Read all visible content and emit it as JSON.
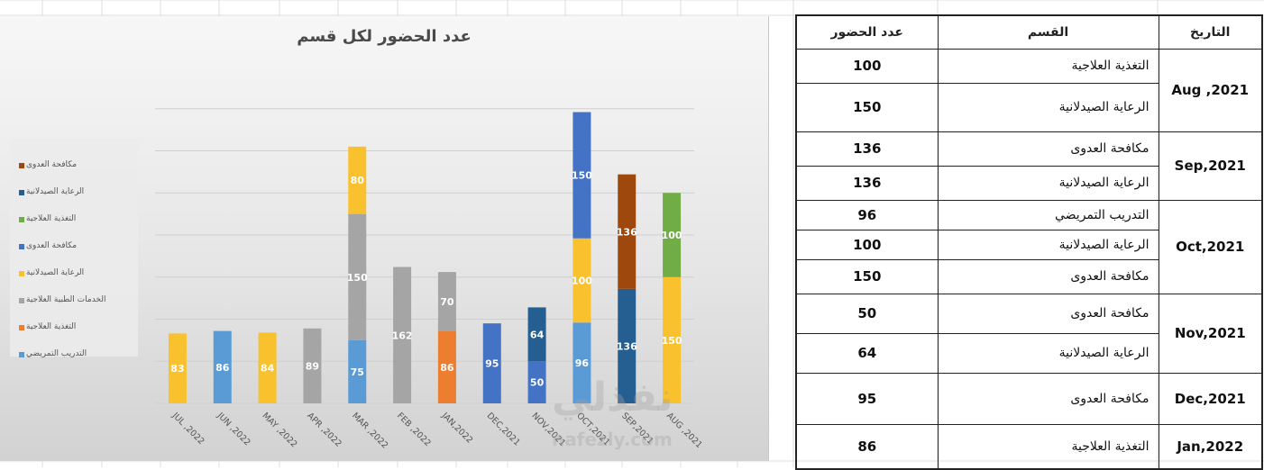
{
  "chart_data": {
    "type": "bar",
    "stacked": true,
    "title": "عدد الحضور لكل قسم",
    "categories": [
      "JUL ,2022",
      "JUN ,2022",
      "MAY ,2022",
      "APR ,2022",
      "MAR ,2022",
      "FEB ,2022",
      "JAN,2022",
      "DEC,2021",
      "NOV,2021",
      "OCT,2021",
      "SEP,2021",
      "AUG ,2021"
    ],
    "stacks": [
      [
        {
          "value": 83,
          "color": "#f9c12e"
        }
      ],
      [
        {
          "value": 86,
          "color": "#5b9bd5"
        }
      ],
      [
        {
          "value": 84,
          "color": "#f9c12e"
        }
      ],
      [
        {
          "value": 89,
          "color": "#a5a5a5"
        }
      ],
      [
        {
          "value": 75,
          "color": "#5b9bd5"
        },
        {
          "value": 150,
          "color": "#a5a5a5"
        },
        {
          "value": 80,
          "color": "#f9c12e"
        }
      ],
      [
        {
          "value": 162,
          "color": "#a5a5a5"
        }
      ],
      [
        {
          "value": 86,
          "color": "#ed7d31"
        },
        {
          "value": 70,
          "color": "#a5a5a5"
        }
      ],
      [
        {
          "value": 95,
          "color": "#4472c4"
        }
      ],
      [
        {
          "value": 50,
          "color": "#4472c4"
        },
        {
          "value": 64,
          "color": "#255e91"
        }
      ],
      [
        {
          "value": 96,
          "color": "#5b9bd5"
        },
        {
          "value": 100,
          "color": "#f9c12e"
        },
        {
          "value": 150,
          "color": "#4472c4"
        }
      ],
      [
        {
          "value": 136,
          "color": "#255e91"
        },
        {
          "value": 136,
          "color": "#9e480e"
        }
      ],
      [
        {
          "value": 150,
          "color": "#f9c12e"
        },
        {
          "value": 100,
          "color": "#70ad47"
        }
      ]
    ],
    "legend": [
      {
        "name": "مكافحة العدوى",
        "color": "#9e480e"
      },
      {
        "name": "الرعاية الصيدلانية",
        "color": "#255e91"
      },
      {
        "name": "التغذية العلاجية",
        "color": "#70ad47"
      },
      {
        "name": "مكافحة العدوى",
        "color": "#4472c4"
      },
      {
        "name": "الرعاية الصيدلانية",
        "color": "#f9c12e"
      },
      {
        "name": "الخدمات الطبية العلاجية",
        "color": "#a5a5a5"
      },
      {
        "name": "التغذية العلاجية",
        "color": "#ed7d31"
      },
      {
        "name": "التدريب التمريضي",
        "color": "#5b9bd5"
      }
    ],
    "legend_position": "left",
    "grid": true,
    "ylim": [
      0,
      400
    ]
  },
  "table": {
    "headers": {
      "count": "عدد الحضور",
      "dept": "القسم",
      "date": "التاريخ"
    },
    "groups": [
      {
        "date": "Aug ,2021",
        "rows": [
          {
            "dept": "التغذية العلاجية",
            "count": "100"
          },
          {
            "dept": "الرعاية الصيدلانية",
            "count": "150"
          }
        ]
      },
      {
        "date": "Sep,2021",
        "rows": [
          {
            "dept": "مكافحة العدوى",
            "count": "136"
          },
          {
            "dept": "الرعاية الصيدلانية",
            "count": "136"
          }
        ]
      },
      {
        "date": "Oct,2021",
        "rows": [
          {
            "dept": "التدريب التمريضي",
            "count": "96"
          },
          {
            "dept": "الرعاية الصيدلانية",
            "count": "100"
          },
          {
            "dept": "مكافحة العدوى",
            "count": "150"
          }
        ]
      },
      {
        "date": "Nov,2021",
        "rows": [
          {
            "dept": "مكافحة العدوى",
            "count": "50"
          },
          {
            "dept": "الرعاية الصيدلانية",
            "count": "64"
          }
        ]
      },
      {
        "date": "Dec,2021",
        "rows": [
          {
            "dept": "مكافحة العدوى",
            "count": "95"
          }
        ]
      },
      {
        "date": "Jan,2022",
        "rows": [
          {
            "dept": "التغذية العلاجية",
            "count": "86"
          }
        ]
      }
    ]
  },
  "watermark": {
    "arabic": "نفذلي",
    "latin": "nafezly.com"
  }
}
